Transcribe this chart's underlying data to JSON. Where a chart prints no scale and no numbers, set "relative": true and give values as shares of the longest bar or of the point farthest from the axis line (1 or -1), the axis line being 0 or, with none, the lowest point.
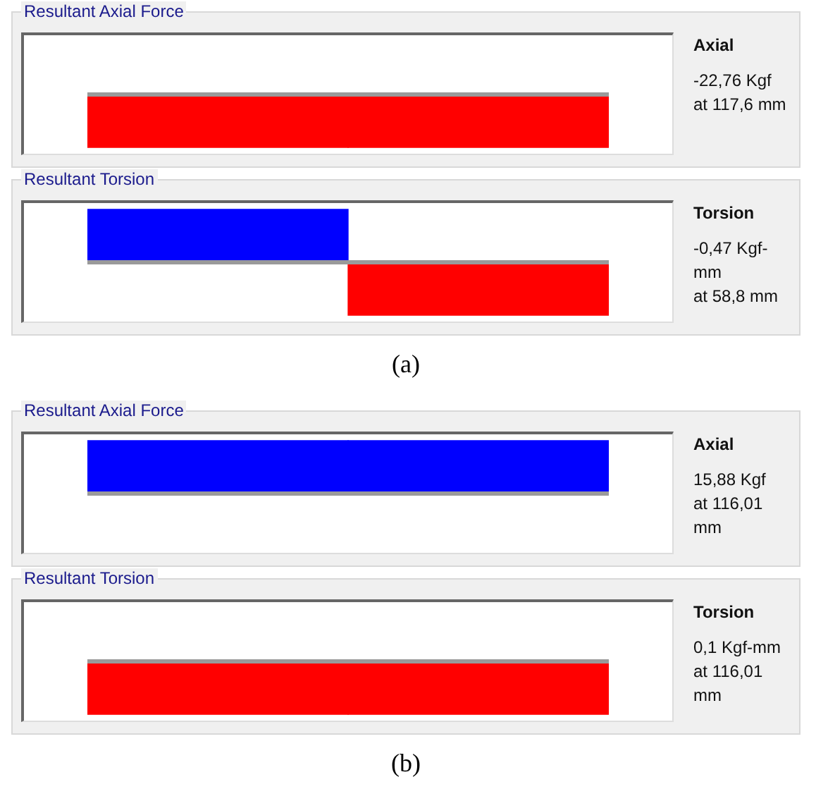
{
  "chart_data": [
    {
      "type": "bar",
      "title": "Resultant Axial Force",
      "categories": [
        null,
        null
      ],
      "values": [
        -1,
        -1
      ],
      "colors": [
        "#ff0000",
        "#ff0000"
      ],
      "relative": true,
      "annotations": [
        "Axial",
        "-22,76 Kgf",
        "at 117,6 mm"
      ]
    },
    {
      "type": "bar",
      "title": "Resultant Torsion",
      "categories": [
        null,
        null
      ],
      "values": [
        1,
        -1
      ],
      "colors": [
        "#0000ff",
        "#ff0000"
      ],
      "relative": true,
      "annotations": [
        "Torsion",
        "-0,47 Kgf-mm",
        "at 58,8 mm",
        "(a)"
      ]
    },
    {
      "type": "bar",
      "title": "Resultant Axial Force",
      "categories": [
        null,
        null
      ],
      "values": [
        1,
        1
      ],
      "colors": [
        "#0000ff",
        "#0000ff"
      ],
      "relative": true,
      "annotations": [
        "Axial",
        "15,88 Kgf",
        "at 116,01 mm"
      ]
    },
    {
      "type": "bar",
      "title": "Resultant Torsion",
      "categories": [
        null,
        null
      ],
      "values": [
        -1,
        -1
      ],
      "colors": [
        "#ff0000",
        "#ff0000"
      ],
      "relative": true,
      "annotations": [
        "Torsion",
        "0,1 Kgf-mm",
        "at 116,01 mm",
        "(b)"
      ]
    }
  ]
}
